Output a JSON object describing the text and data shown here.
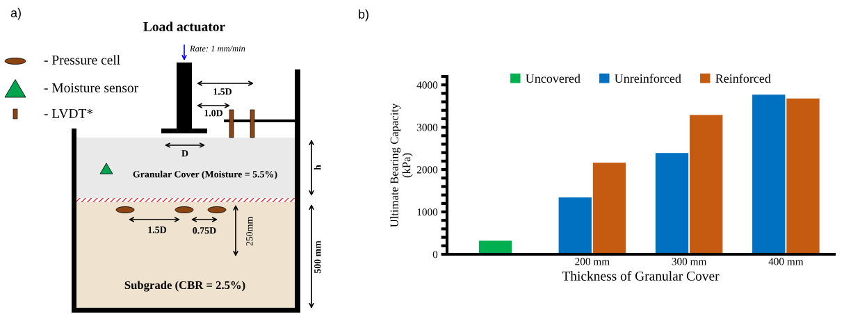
{
  "chart_data": [
    {
      "type": "other",
      "title": "Load actuator",
      "annotations": [
        "a)",
        "Rate: 1 mm/min",
        "- Pressure cell",
        "- Moisture sensor",
        "- LVDT*",
        "1.5D",
        "1.0D",
        "D",
        "Granular Cover (Moisture = 5.5%)",
        "h",
        "1.5D",
        "0.75D",
        "250mm",
        "500 mm",
        "Subgrade (CBR = 2.5%)"
      ]
    },
    {
      "type": "bar",
      "xlabel": "Thickness of Granular Cover",
      "ylabel": "Ultimate Bearing Capacity\n(kPa)",
      "annotations": [
        "b)"
      ],
      "categories": [
        null,
        "200 mm",
        "300 mm",
        "400 mm"
      ],
      "series": [
        {
          "name": "Uncovered",
          "color": "#00b050",
          "values": [
            320,
            null,
            null,
            null
          ]
        },
        {
          "name": "Unreinforced",
          "color": "#0070c0",
          "values": [
            null,
            1340,
            2390,
            3770
          ]
        },
        {
          "name": "Reinforced",
          "color": "#c55a11",
          "values": [
            null,
            2160,
            3290,
            3680
          ]
        }
      ],
      "ylim": [
        0,
        4200
      ],
      "yticks": [
        0,
        {
          "value": 200,
          "label": null
        },
        {
          "value": 400,
          "label": null
        },
        {
          "value": 600,
          "label": null
        },
        {
          "value": 800,
          "label": null
        },
        1000,
        {
          "value": 1200,
          "label": null
        },
        {
          "value": 1400,
          "label": null
        },
        {
          "value": 1600,
          "label": null
        },
        {
          "value": 1800,
          "label": null
        },
        2000,
        {
          "value": 2200,
          "label": null
        },
        {
          "value": 2400,
          "label": null
        },
        {
          "value": 2600,
          "label": null
        },
        {
          "value": 2800,
          "label": null
        },
        3000,
        {
          "value": 3200,
          "label": null
        },
        {
          "value": 3400,
          "label": null
        },
        {
          "value": 3600,
          "label": null
        },
        {
          "value": 3800,
          "label": null
        },
        4000,
        {
          "value": 4200,
          "label": null
        }
      ],
      "grid": false,
      "legend": "top"
    }
  ]
}
